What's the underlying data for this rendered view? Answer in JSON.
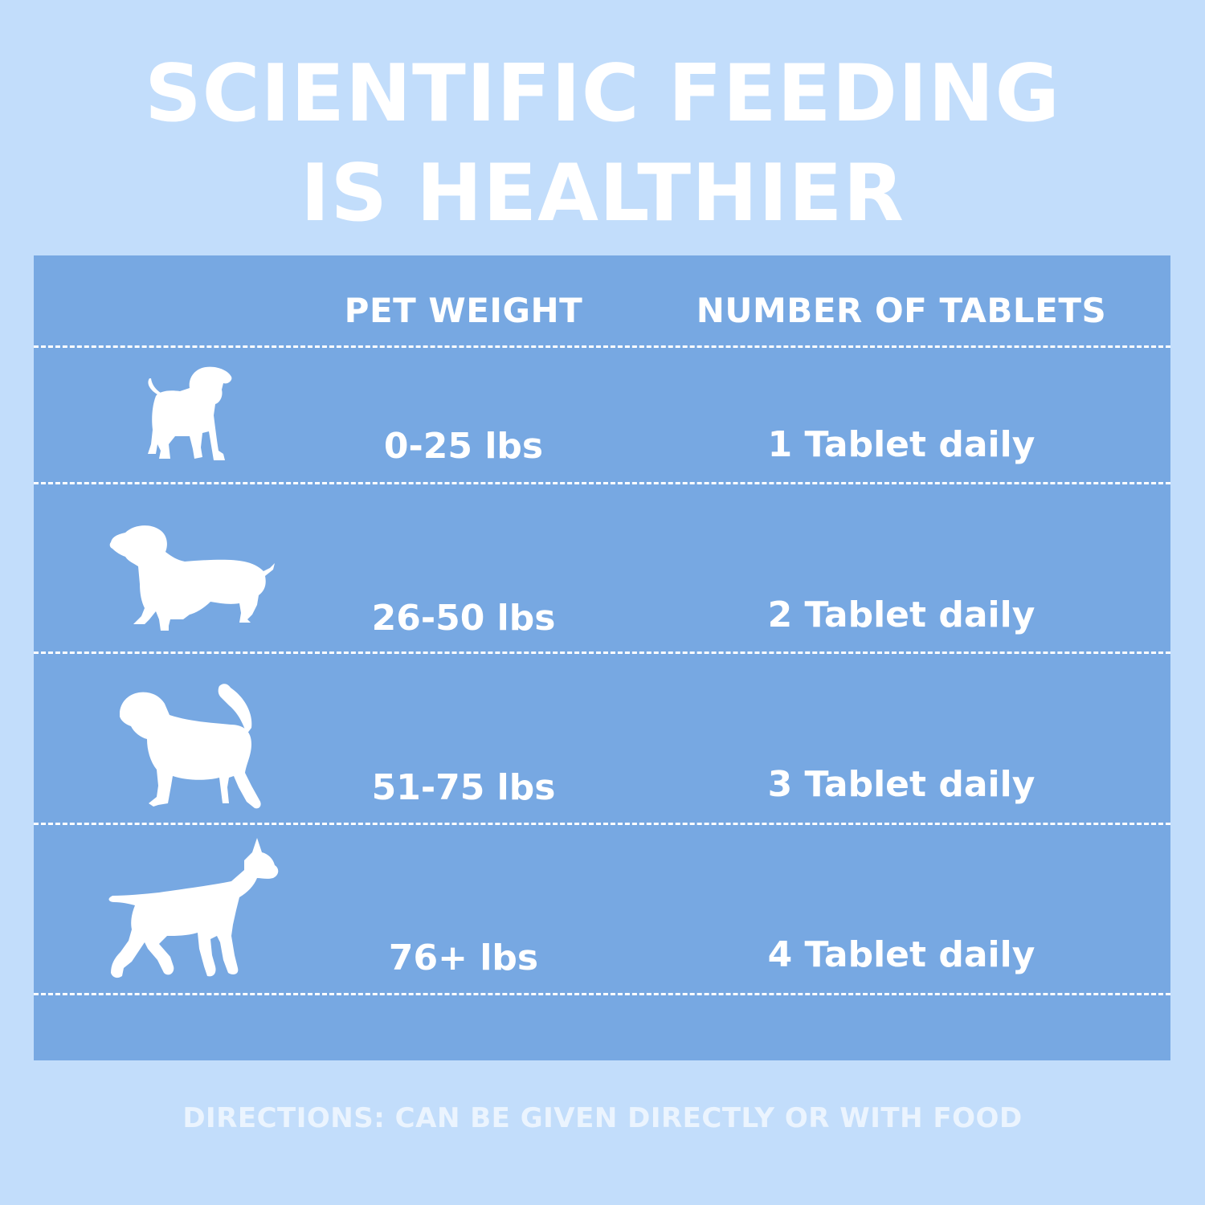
{
  "title": {
    "line1": "SCIENTIFIC FEEDING",
    "line2": "IS HEALTHIER"
  },
  "table": {
    "headers": {
      "weight": "PET WEIGHT",
      "tablets": "NUMBER OF TABLETS"
    },
    "rows": [
      {
        "icon": "small-dog-icon",
        "weight": "0-25 lbs",
        "tablets": "1 Tablet daily"
      },
      {
        "icon": "dachshund-icon",
        "weight": "26-50 lbs",
        "tablets": "2 Tablet daily"
      },
      {
        "icon": "hound-icon",
        "weight": "51-75 lbs",
        "tablets": "3 Tablet daily"
      },
      {
        "icon": "large-dog-icon",
        "weight": "76+ lbs",
        "tablets": "4 Tablet daily"
      }
    ]
  },
  "directions": "DIRECTIONS: CAN BE GIVEN DIRECTLY OR WITH FOOD",
  "colors": {
    "background": "#c2ddfb",
    "panel": "#77a8e2",
    "text": "#ffffff"
  }
}
